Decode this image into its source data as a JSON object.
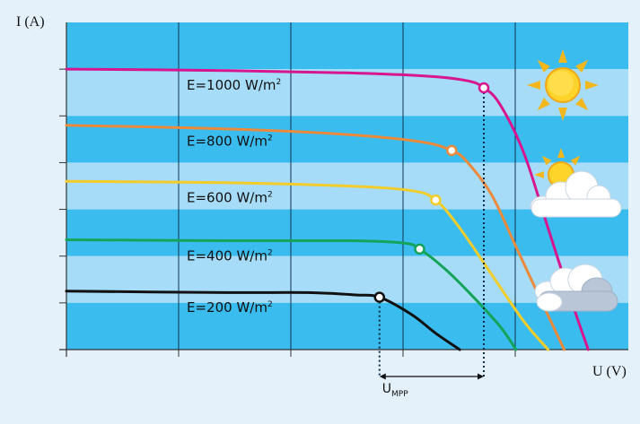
{
  "chart_data": {
    "type": "line",
    "xlabel": "U (V)",
    "ylabel": "I (A)",
    "grid": true,
    "colors": {
      "background_dark": "#3bbcee",
      "background_light": "#a6dcf7",
      "grid": "#0f3550",
      "axis": "#333333"
    },
    "series": [
      {
        "label_text": "E=1000 W/m",
        "label_sup": "2",
        "color": "#d6158f",
        "points": [
          [
            0,
            6.0
          ],
          [
            20,
            5.97
          ],
          [
            35,
            5.92
          ],
          [
            45,
            5.85
          ],
          [
            50,
            5.75
          ],
          [
            52,
            5.6
          ],
          [
            54,
            5.25
          ],
          [
            57,
            4.2
          ],
          [
            60,
            2.6
          ],
          [
            63,
            1.0
          ],
          [
            65,
            0
          ]
        ],
        "mpp": [
          52,
          5.6
        ]
      },
      {
        "label_text": "E=800 W/m",
        "label_sup": "2",
        "color": "#ea8a3c",
        "points": [
          [
            0,
            4.8
          ],
          [
            20,
            4.72
          ],
          [
            35,
            4.6
          ],
          [
            44,
            4.45
          ],
          [
            48,
            4.26
          ],
          [
            50,
            4.0
          ],
          [
            53,
            3.3
          ],
          [
            56,
            2.2
          ],
          [
            59,
            1.1
          ],
          [
            62,
            0
          ]
        ],
        "mpp": [
          48,
          4.26
        ]
      },
      {
        "label_text": "E=600 W/m",
        "label_sup": "2",
        "color": "#f2cc2a",
        "points": [
          [
            0,
            3.6
          ],
          [
            20,
            3.57
          ],
          [
            35,
            3.5
          ],
          [
            43,
            3.4
          ],
          [
            46,
            3.2
          ],
          [
            49,
            2.6
          ],
          [
            53,
            1.6
          ],
          [
            57,
            0.6
          ],
          [
            60,
            0
          ]
        ],
        "mpp": [
          46,
          3.2
        ]
      },
      {
        "label_text": "E=400 W/m",
        "label_sup": "2",
        "color": "#15a35a",
        "points": [
          [
            0,
            2.35
          ],
          [
            20,
            2.33
          ],
          [
            35,
            2.33
          ],
          [
            42,
            2.28
          ],
          [
            44,
            2.15
          ],
          [
            47,
            1.75
          ],
          [
            50,
            1.25
          ],
          [
            54,
            0.5
          ],
          [
            56,
            0
          ]
        ],
        "mpp": [
          44,
          2.15
        ]
      },
      {
        "label_text": "E=200 W/m",
        "label_sup": "2",
        "color": "#111111",
        "points": [
          [
            0,
            1.25
          ],
          [
            20,
            1.22
          ],
          [
            30,
            1.22
          ],
          [
            36,
            1.17
          ],
          [
            39,
            1.12
          ],
          [
            43,
            0.75
          ],
          [
            46,
            0.35
          ],
          [
            49,
            0
          ]
        ],
        "mpp": [
          39,
          1.12
        ]
      }
    ],
    "annotation": {
      "text": "U",
      "subscript": "MPP"
    }
  },
  "icons": {
    "row1": "sun-icon",
    "row2": "sun-behind-cloud-icon",
    "row3": "cloud-icon"
  }
}
